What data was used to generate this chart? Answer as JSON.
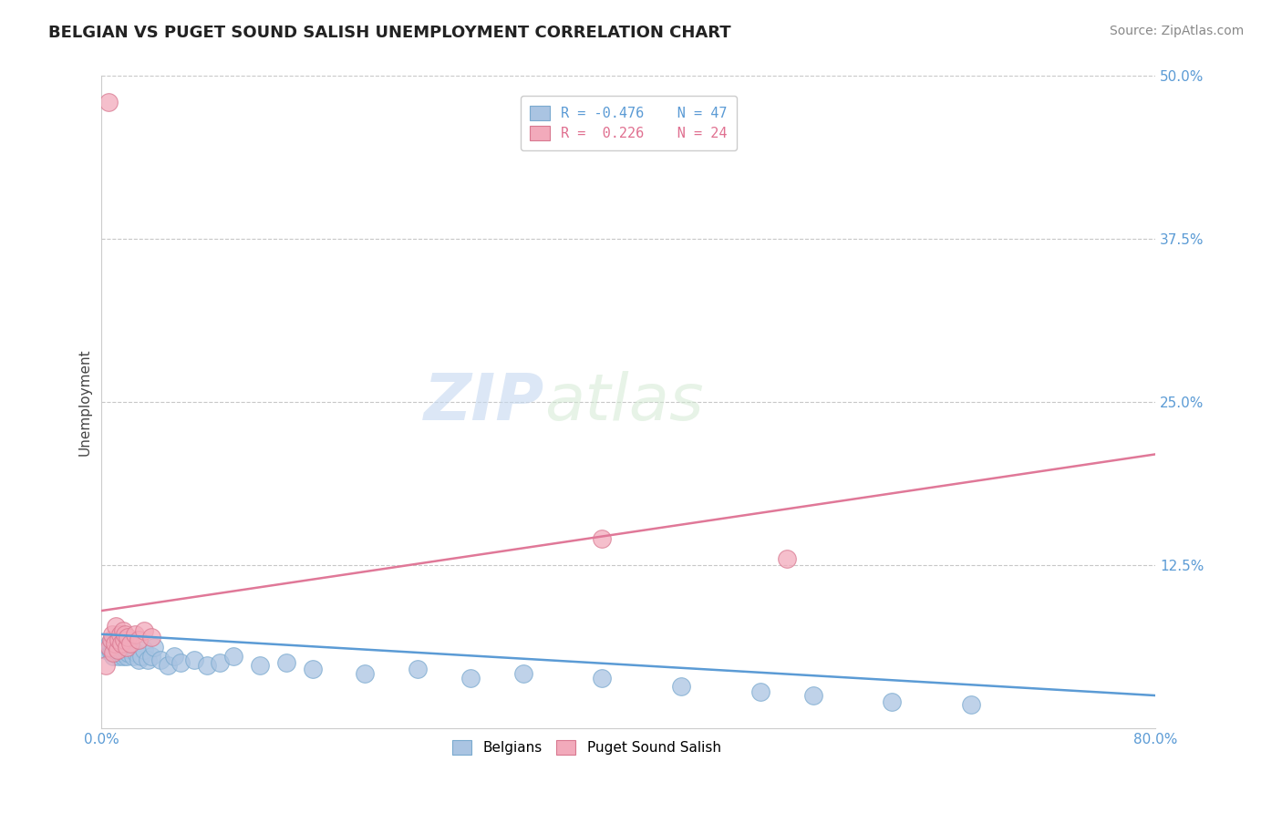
{
  "title": "BELGIAN VS PUGET SOUND SALISH UNEMPLOYMENT CORRELATION CHART",
  "source": "Source: ZipAtlas.com",
  "ylabel": "Unemployment",
  "xlim": [
    0.0,
    0.8
  ],
  "ylim": [
    0.0,
    0.5
  ],
  "yticks": [
    0.0,
    0.125,
    0.25,
    0.375,
    0.5
  ],
  "ytick_labels": [
    "",
    "12.5%",
    "25.0%",
    "37.5%",
    "50.0%"
  ],
  "xtick_labels": [
    "0.0%",
    "80.0%"
  ],
  "background_color": "#ffffff",
  "grid_color": "#c8c8c8",
  "watermark_zip": "ZIP",
  "watermark_atlas": "atlas",
  "belgian_color": "#aac4e2",
  "belgian_edge": "#7aaacf",
  "puget_color": "#f2aabb",
  "puget_edge": "#d87890",
  "trend_blue": "#5b9bd5",
  "trend_pink": "#e07898",
  "belgian_points": [
    [
      0.003,
      0.06
    ],
    [
      0.005,
      0.062
    ],
    [
      0.006,
      0.065
    ],
    [
      0.007,
      0.058
    ],
    [
      0.008,
      0.068
    ],
    [
      0.009,
      0.055
    ],
    [
      0.01,
      0.062
    ],
    [
      0.011,
      0.058
    ],
    [
      0.012,
      0.06
    ],
    [
      0.013,
      0.055
    ],
    [
      0.014,
      0.058
    ],
    [
      0.015,
      0.062
    ],
    [
      0.016,
      0.055
    ],
    [
      0.017,
      0.058
    ],
    [
      0.018,
      0.06
    ],
    [
      0.019,
      0.055
    ],
    [
      0.02,
      0.058
    ],
    [
      0.022,
      0.06
    ],
    [
      0.024,
      0.055
    ],
    [
      0.026,
      0.058
    ],
    [
      0.028,
      0.052
    ],
    [
      0.03,
      0.055
    ],
    [
      0.032,
      0.06
    ],
    [
      0.035,
      0.052
    ],
    [
      0.038,
      0.055
    ],
    [
      0.04,
      0.062
    ],
    [
      0.045,
      0.052
    ],
    [
      0.05,
      0.048
    ],
    [
      0.055,
      0.055
    ],
    [
      0.06,
      0.05
    ],
    [
      0.07,
      0.052
    ],
    [
      0.08,
      0.048
    ],
    [
      0.09,
      0.05
    ],
    [
      0.1,
      0.055
    ],
    [
      0.12,
      0.048
    ],
    [
      0.14,
      0.05
    ],
    [
      0.16,
      0.045
    ],
    [
      0.2,
      0.042
    ],
    [
      0.24,
      0.045
    ],
    [
      0.28,
      0.038
    ],
    [
      0.32,
      0.042
    ],
    [
      0.38,
      0.038
    ],
    [
      0.44,
      0.032
    ],
    [
      0.5,
      0.028
    ],
    [
      0.54,
      0.025
    ],
    [
      0.6,
      0.02
    ],
    [
      0.66,
      0.018
    ]
  ],
  "puget_points": [
    [
      0.003,
      0.048
    ],
    [
      0.005,
      0.48
    ],
    [
      0.006,
      0.062
    ],
    [
      0.007,
      0.068
    ],
    [
      0.008,
      0.072
    ],
    [
      0.009,
      0.058
    ],
    [
      0.01,
      0.065
    ],
    [
      0.011,
      0.078
    ],
    [
      0.012,
      0.06
    ],
    [
      0.013,
      0.068
    ],
    [
      0.014,
      0.072
    ],
    [
      0.015,
      0.065
    ],
    [
      0.016,
      0.075
    ],
    [
      0.017,
      0.068
    ],
    [
      0.018,
      0.072
    ],
    [
      0.019,
      0.062
    ],
    [
      0.02,
      0.07
    ],
    [
      0.022,
      0.065
    ],
    [
      0.025,
      0.072
    ],
    [
      0.028,
      0.068
    ],
    [
      0.032,
      0.075
    ],
    [
      0.038,
      0.07
    ],
    [
      0.38,
      0.145
    ],
    [
      0.52,
      0.13
    ]
  ],
  "belgian_trend_x": [
    0.0,
    0.8
  ],
  "belgian_trend_y": [
    0.072,
    0.025
  ],
  "puget_trend_x": [
    0.0,
    0.8
  ],
  "puget_trend_y": [
    0.09,
    0.21
  ],
  "title_fontsize": 13,
  "axis_label_fontsize": 11,
  "tick_fontsize": 11,
  "legend_fontsize": 11,
  "source_fontsize": 10,
  "watermark_fontsize_zip": 52,
  "watermark_fontsize_atlas": 52
}
